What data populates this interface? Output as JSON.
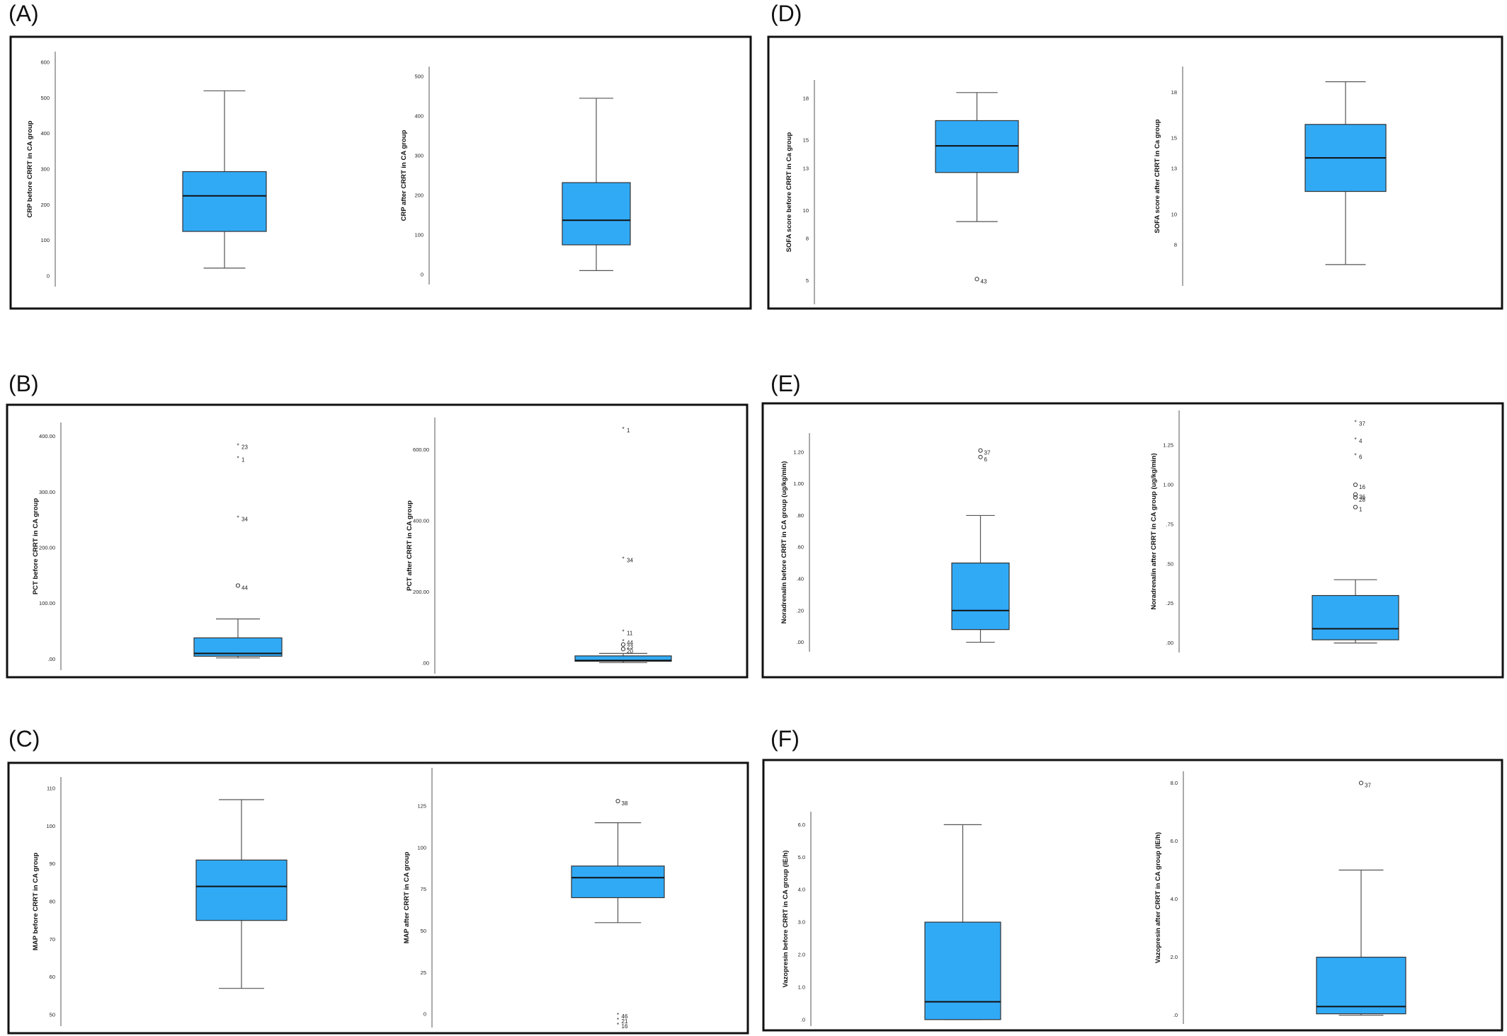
{
  "chart_data": [
    {
      "panel": "(A)",
      "plots": [
        {
          "type": "box",
          "ylabel": "CRP before CRRT in CA group",
          "ticks": [
            0,
            100,
            200,
            300,
            400,
            500,
            600
          ],
          "tick_labels": [
            "0",
            "100",
            "200",
            "300",
            "400",
            "500",
            "600"
          ],
          "ylim": [
            -30,
            630
          ],
          "stats": {
            "whisker_low": 22,
            "q1": 125,
            "median": 225,
            "q3": 293,
            "whisker_high": 520
          },
          "outliers": []
        },
        {
          "type": "box",
          "ylabel": "CRP after CRRT in CA group",
          "ticks": [
            0,
            100,
            200,
            300,
            400,
            500
          ],
          "tick_labels": [
            "0",
            "100",
            "200",
            "300",
            "400",
            "500"
          ],
          "ylim": [
            -25,
            525
          ],
          "stats": {
            "whisker_low": 10,
            "q1": 75,
            "median": 137,
            "q3": 232,
            "whisker_high": 445
          },
          "outliers": []
        }
      ]
    },
    {
      "panel": "(B)",
      "plots": [
        {
          "type": "box",
          "ylabel": "PCT before CRRT in CA group",
          "ticks": [
            0,
            100,
            200,
            300,
            400
          ],
          "tick_labels": [
            ".00",
            "100.00",
            "200.00",
            "300.00",
            "400.00"
          ],
          "ylim": [
            -20,
            425
          ],
          "stats": {
            "whisker_low": 2,
            "q1": 5,
            "median": 10,
            "q3": 38,
            "whisker_high": 72
          },
          "outliers": [
            {
              "value": 385,
              "marker": "*",
              "label": "23"
            },
            {
              "value": 362,
              "marker": "*",
              "label": "1"
            },
            {
              "value": 255,
              "marker": "*",
              "label": "34"
            },
            {
              "value": 132,
              "marker": "o",
              "label": "44"
            }
          ]
        },
        {
          "type": "box",
          "ylabel": "PCT after CRRT in CA group",
          "ticks": [
            0,
            200,
            400,
            600
          ],
          "tick_labels": [
            ".00",
            "200.00",
            "400.00",
            "600.00"
          ],
          "ylim": [
            -30,
            690
          ],
          "stats": {
            "whisker_low": 1,
            "q1": 5,
            "median": 7,
            "q3": 20,
            "whisker_high": 27
          },
          "outliers": [
            {
              "value": 660,
              "marker": "*",
              "label": "1"
            },
            {
              "value": 295,
              "marker": "*",
              "label": "34"
            },
            {
              "value": 90,
              "marker": "*",
              "label": "11"
            },
            {
              "value": 77,
              "marker": "*",
              "label": "44"
            },
            {
              "value": 67,
              "marker": "o",
              "label": "20"
            },
            {
              "value": 52,
              "marker": "o",
              "label": "23"
            }
          ]
        }
      ]
    },
    {
      "panel": "(C)",
      "plots": [
        {
          "type": "box",
          "ylabel": "MAP before CRRT in CA group",
          "ticks": [
            50,
            60,
            70,
            80,
            90,
            100,
            110
          ],
          "tick_labels": [
            "50",
            "60",
            "70",
            "80",
            "90",
            "100",
            "110"
          ],
          "ylim": [
            47,
            113
          ],
          "stats": {
            "whisker_low": 57,
            "q1": 75,
            "median": 84,
            "q3": 91,
            "whisker_high": 107
          },
          "outliers": []
        },
        {
          "type": "box",
          "ylabel": "MAP after CRRT in CA group",
          "ticks": [
            0,
            25,
            50,
            75,
            100,
            125
          ],
          "tick_labels": [
            "0",
            "25",
            "50",
            "75",
            "100",
            "125"
          ],
          "ylim": [
            -8,
            148
          ],
          "stats": {
            "whisker_low": 55,
            "q1": 70,
            "median": 82,
            "q3": 89,
            "whisker_high": 115
          },
          "outliers": [
            {
              "value": 128,
              "marker": "o",
              "label": "38"
            },
            {
              "value": 0,
              "marker": "*",
              "label": "46"
            },
            {
              "value": 0,
              "marker": "*",
              "label": "21"
            },
            {
              "value": 0,
              "marker": "*",
              "label": "16"
            }
          ]
        }
      ]
    },
    {
      "panel": "(D)",
      "plots": [
        {
          "type": "box",
          "ylabel": "SOFA score before CRRT in Ca group",
          "ticks": [
            5,
            8,
            10,
            13,
            15,
            18
          ],
          "tick_labels": [
            "5",
            "8",
            "10",
            "13",
            "15",
            "18"
          ],
          "ylim": [
            3.3,
            19.3
          ],
          "stats": {
            "whisker_low": 9.2,
            "q1": 12.7,
            "median": 14.6,
            "q3": 16.4,
            "whisker_high": 18.4
          },
          "outliers": [
            {
              "value": 5.1,
              "marker": "o",
              "label": "43"
            }
          ]
        },
        {
          "type": "box",
          "ylabel": "SOFA score after CRRT in Ca group",
          "ticks": [
            8,
            10,
            13,
            15,
            18
          ],
          "tick_labels": [
            "8",
            "10",
            "13",
            "15",
            "18"
          ],
          "ylim": [
            5.3,
            19.7
          ],
          "stats": {
            "whisker_low": 6.7,
            "q1": 11.5,
            "median": 13.7,
            "q3": 15.9,
            "whisker_high": 18.7
          },
          "outliers": []
        }
      ]
    },
    {
      "panel": "(E)",
      "plots": [
        {
          "type": "box",
          "ylabel": "Noradrenalin before CRRT in CA group (ug/kg/min)",
          "ticks": [
            0,
            0.2,
            0.4,
            0.6,
            0.8,
            1.0,
            1.2
          ],
          "tick_labels": [
            ".00",
            ".20",
            ".40",
            ".60",
            ".80",
            "1.00",
            "1.20"
          ],
          "ylim": [
            -0.06,
            1.32
          ],
          "stats": {
            "whisker_low": 0,
            "q1": 0.08,
            "median": 0.2,
            "q3": 0.5,
            "whisker_high": 0.8
          },
          "outliers": [
            {
              "value": 1.21,
              "marker": "o",
              "label": "37"
            },
            {
              "value": 1.2,
              "marker": "o",
              "label": "6"
            }
          ]
        },
        {
          "type": "box",
          "ylabel": "Noradrenalin after CRRT in CA group (ug/kg/min)",
          "ticks": [
            0,
            0.25,
            0.5,
            0.75,
            1.0,
            1.25
          ],
          "tick_labels": [
            ".00",
            ".25",
            ".50",
            ".75",
            "1.00",
            "1.25"
          ],
          "ylim": [
            -0.06,
            1.47
          ],
          "stats": {
            "whisker_low": 0,
            "q1": 0.02,
            "median": 0.09,
            "q3": 0.3,
            "whisker_high": 0.4
          },
          "outliers": [
            {
              "value": 1.4,
              "marker": "*",
              "label": "37"
            },
            {
              "value": 1.29,
              "marker": "*",
              "label": "4"
            },
            {
              "value": 1.19,
              "marker": "*",
              "label": "6"
            },
            {
              "value": 1.0,
              "marker": "o",
              "label": "16"
            },
            {
              "value": 0.97,
              "marker": "o",
              "label": "36"
            },
            {
              "value": 0.92,
              "marker": "o",
              "label": "28"
            },
            {
              "value": 0.89,
              "marker": "o",
              "label": "1"
            }
          ]
        }
      ]
    },
    {
      "panel": "(F)",
      "plots": [
        {
          "type": "box",
          "ylabel": "Vazopresin before CRRT in CA group (IE/h)",
          "ticks": [
            0,
            1,
            2,
            3,
            4,
            5,
            6
          ],
          "tick_labels": [
            ".0",
            "1.0",
            "2.0",
            "3.0",
            "4.0",
            "5.0",
            "6.0"
          ],
          "ylim": [
            -0.2,
            6.4
          ],
          "stats": {
            "whisker_low": 0,
            "q1": 0,
            "median": 0.55,
            "q3": 3.0,
            "whisker_high": 6.0
          },
          "outliers": []
        },
        {
          "type": "box",
          "ylabel": "Vazopresin after CRRT in CA group (IE/h)",
          "ticks": [
            0,
            2,
            4,
            6,
            8
          ],
          "tick_labels": [
            ".0",
            "2.0",
            "4.0",
            "6.0",
            "8.0"
          ],
          "ylim": [
            -0.3,
            8.4
          ],
          "stats": {
            "whisker_low": 0,
            "q1": 0.05,
            "median": 0.3,
            "q3": 2.0,
            "whisker_high": 5.0
          },
          "outliers": [
            {
              "value": 8.0,
              "marker": "o",
              "label": "37"
            }
          ]
        }
      ]
    }
  ]
}
